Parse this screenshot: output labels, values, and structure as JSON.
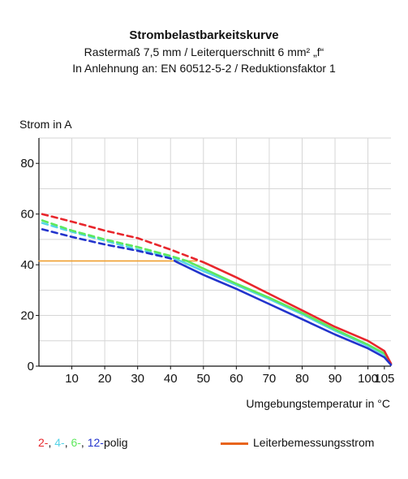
{
  "chart_data": {
    "type": "line",
    "title": "Strombelastbarkeitskurve",
    "subtitle_lines": [
      "Rastermaß 7,5 mm / Leiterquerschnitt 6 mm² „f“",
      "In Anlehnung an: EN 60512-5-2 / Reduktionsfaktor 1"
    ],
    "ylabel": "Strom in A",
    "xlabel": "Umgebungstemperatur in °C",
    "xlim": [
      0,
      107
    ],
    "ylim": [
      0,
      90
    ],
    "xticks": [
      10,
      20,
      30,
      40,
      50,
      60,
      70,
      80,
      90,
      100,
      105
    ],
    "xtick_labels": [
      "10",
      "20",
      "30",
      "40",
      "50",
      "60",
      "70",
      "80",
      "90",
      "100",
      "105"
    ],
    "yticks": [
      0,
      20,
      40,
      60,
      80
    ],
    "ytick_labels": [
      "0",
      "20",
      "40",
      "60",
      "80"
    ],
    "grid": true,
    "series": [
      {
        "name": "2-",
        "color": "#e8262c",
        "dashed_points": [
          [
            1,
            60
          ],
          [
            10,
            57
          ],
          [
            20,
            53.5
          ],
          [
            30,
            50.5
          ],
          [
            40,
            46
          ],
          [
            50,
            41
          ]
        ],
        "solid_points": [
          [
            50,
            41
          ],
          [
            60,
            35
          ],
          [
            70,
            28.5
          ],
          [
            80,
            22
          ],
          [
            90,
            15.5
          ],
          [
            100,
            10
          ],
          [
            105,
            6
          ],
          [
            107,
            1
          ]
        ]
      },
      {
        "name": "4-",
        "color": "#55d4e8",
        "dashed_points": [
          [
            1,
            56.5
          ],
          [
            10,
            53
          ],
          [
            20,
            49.5
          ],
          [
            30,
            46
          ],
          [
            40,
            43
          ],
          [
            43,
            41.5
          ]
        ],
        "solid_points": [
          [
            43,
            41.5
          ],
          [
            50,
            37.5
          ],
          [
            60,
            32
          ],
          [
            70,
            26.5
          ],
          [
            80,
            20.5
          ],
          [
            90,
            14
          ],
          [
            100,
            8
          ],
          [
            105,
            4.5
          ],
          [
            107,
            1
          ]
        ]
      },
      {
        "name": "6-",
        "color": "#5ee85c",
        "dashed_points": [
          [
            1,
            57.5
          ],
          [
            10,
            53.5
          ],
          [
            20,
            50
          ],
          [
            30,
            47
          ],
          [
            40,
            43.5
          ],
          [
            45,
            41.5
          ]
        ],
        "solid_points": [
          [
            45,
            41.5
          ],
          [
            50,
            38.5
          ],
          [
            60,
            32.5
          ],
          [
            70,
            27
          ],
          [
            80,
            21
          ],
          [
            90,
            14.5
          ],
          [
            100,
            8.5
          ],
          [
            105,
            5
          ],
          [
            107,
            1
          ]
        ]
      },
      {
        "name": "12-",
        "color": "#2233cc",
        "dashed_points": [
          [
            1,
            54
          ],
          [
            10,
            51
          ],
          [
            20,
            48
          ],
          [
            30,
            45.5
          ],
          [
            40,
            42.5
          ],
          [
            42,
            41
          ]
        ],
        "solid_points": [
          [
            42,
            41
          ],
          [
            50,
            36
          ],
          [
            60,
            30.5
          ],
          [
            70,
            24.5
          ],
          [
            80,
            18.5
          ],
          [
            90,
            12.5
          ],
          [
            100,
            7
          ],
          [
            105,
            3.5
          ],
          [
            107,
            0.5
          ]
        ]
      },
      {
        "name": "Leiterbemessungsstrom",
        "color": "#f0a030",
        "solid_points": [
          [
            0,
            41.5
          ],
          [
            48,
            41.5
          ]
        ]
      }
    ]
  },
  "legend": {
    "poles": [
      {
        "label": "2-",
        "color": "#e8262c"
      },
      {
        "label": ", ",
        "color": "#111111"
      },
      {
        "label": "4-",
        "color": "#55d4e8"
      },
      {
        "label": ", ",
        "color": "#111111"
      },
      {
        "label": "6-",
        "color": "#5ee85c"
      },
      {
        "label": ", ",
        "color": "#111111"
      },
      {
        "label": "12-",
        "color": "#2233cc"
      },
      {
        "label": "polig",
        "color": "#111111"
      }
    ],
    "rated_current_label": "Leiterbemessungsstrom",
    "rated_current_color": "#e8641c"
  }
}
